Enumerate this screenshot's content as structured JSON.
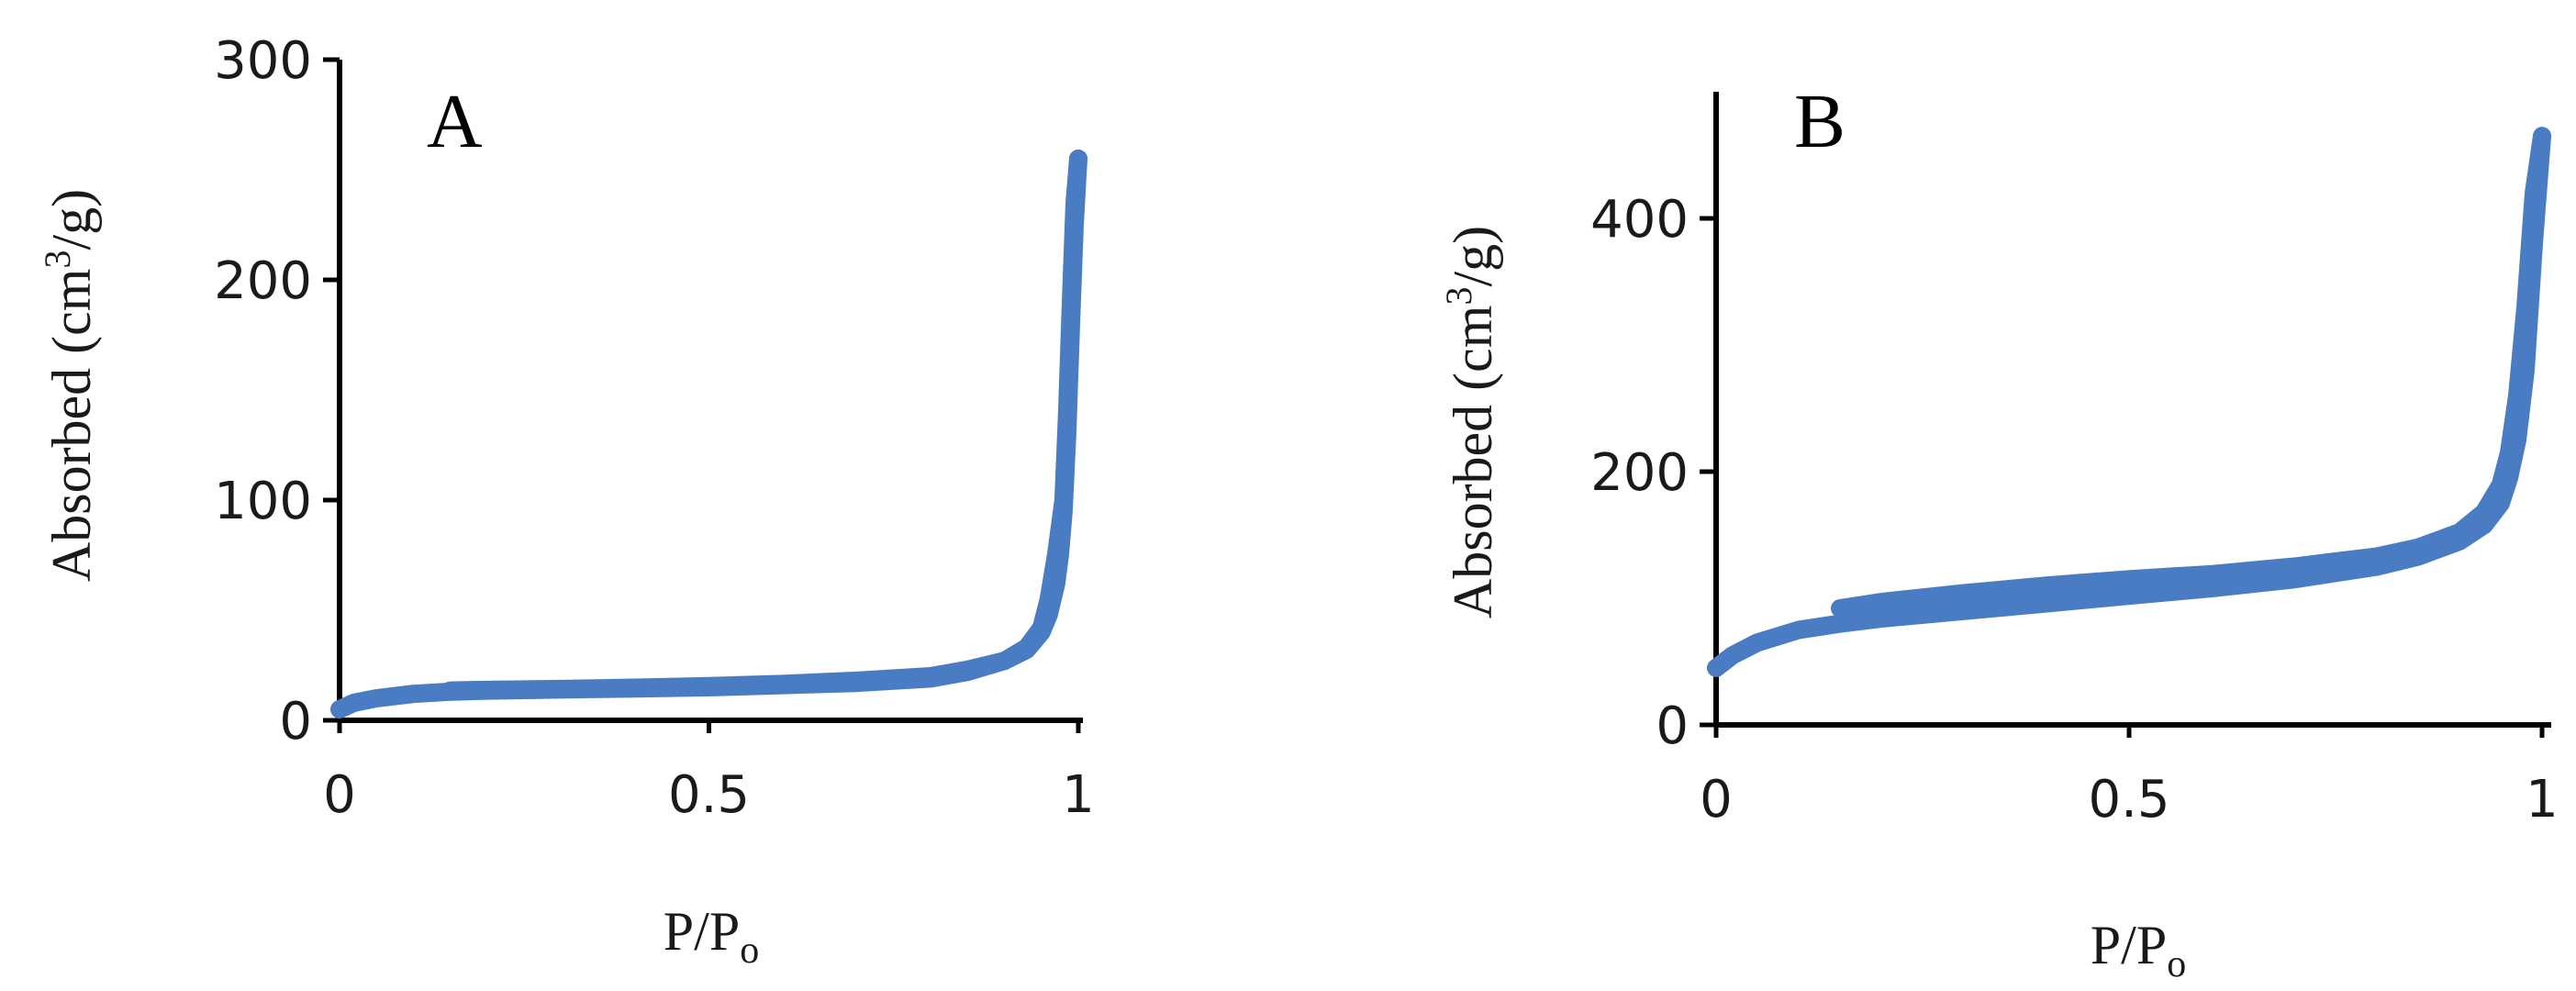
{
  "series_color": "#4a7cc4",
  "chart_data": [
    {
      "type": "line",
      "panel_label": "A",
      "xlabel_main": "P/P",
      "xlabel_sub": "o",
      "ylabel_pre": "Absorbed (cm",
      "ylabel_sup": "3",
      "ylabel_post": "/g)",
      "xlim": [
        0,
        1
      ],
      "ylim": [
        0,
        300
      ],
      "x_ticks": [
        0,
        0.5,
        1
      ],
      "x_tick_labels": [
        "0",
        "0.5",
        "1"
      ],
      "y_ticks": [
        0,
        100,
        200,
        300
      ],
      "y_tick_labels": [
        "0",
        "100",
        "200",
        "300"
      ],
      "grid": false,
      "series": [
        {
          "x": [
            0.0,
            0.02,
            0.05,
            0.1,
            0.15,
            0.2,
            0.3,
            0.4,
            0.5,
            0.6,
            0.7,
            0.8,
            0.85,
            0.9,
            0.93,
            0.95,
            0.96,
            0.97,
            0.98,
            0.985,
            0.99,
            0.995,
            1.0
          ],
          "y": [
            5,
            8,
            10,
            12,
            13,
            13.5,
            14,
            14.5,
            15,
            16,
            17,
            19,
            22,
            27,
            33,
            42,
            55,
            75,
            100,
            140,
            190,
            235,
            255
          ]
        },
        {
          "x": [
            1.0,
            0.995,
            0.99,
            0.985,
            0.98,
            0.975,
            0.97,
            0.96,
            0.95,
            0.93,
            0.9,
            0.85,
            0.8,
            0.7,
            0.6,
            0.5,
            0.4,
            0.3,
            0.2,
            0.15
          ],
          "y": [
            255,
            225,
            180,
            130,
            95,
            75,
            62,
            48,
            40,
            32,
            27,
            23,
            20,
            18,
            16.5,
            15.5,
            14.8,
            14.2,
            13.8,
            13.5
          ]
        }
      ]
    },
    {
      "type": "line",
      "panel_label": "B",
      "xlabel_main": "P/P",
      "xlabel_sub": "o",
      "ylabel_pre": "Absorbed (cm",
      "ylabel_sup": "3",
      "ylabel_post": "/g)",
      "xlim": [
        0,
        1
      ],
      "ylim": [
        0,
        500
      ],
      "x_ticks": [
        0,
        0.5,
        1
      ],
      "x_tick_labels": [
        "0",
        "0.5",
        "1"
      ],
      "y_ticks": [
        0,
        200,
        400
      ],
      "y_tick_labels": [
        "0",
        "200",
        "400"
      ],
      "grid": false,
      "series": [
        {
          "x": [
            0.0,
            0.02,
            0.05,
            0.1,
            0.15,
            0.2,
            0.3,
            0.4,
            0.5,
            0.6,
            0.7,
            0.8,
            0.85,
            0.9,
            0.93,
            0.95,
            0.96,
            0.97,
            0.98,
            0.99,
            1.0
          ],
          "y": [
            45,
            55,
            65,
            75,
            80,
            84,
            90,
            96,
            102,
            108,
            115,
            125,
            133,
            145,
            158,
            175,
            195,
            225,
            280,
            380,
            465
          ]
        },
        {
          "x": [
            1.0,
            0.99,
            0.98,
            0.97,
            0.96,
            0.95,
            0.93,
            0.9,
            0.85,
            0.8,
            0.7,
            0.6,
            0.55,
            0.5,
            0.4,
            0.3,
            0.2,
            0.15
          ],
          "y": [
            465,
            420,
            330,
            260,
            215,
            190,
            168,
            152,
            140,
            133,
            125,
            119,
            117,
            115,
            110,
            104,
            97,
            92
          ]
        }
      ]
    }
  ]
}
